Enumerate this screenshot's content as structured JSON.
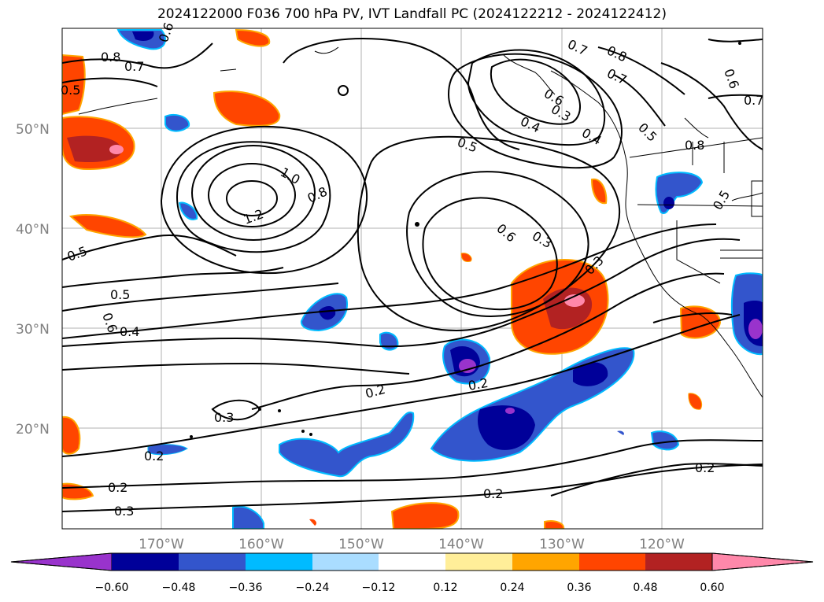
{
  "title": "2024122000 F036 700 hPa PV, IVT Landfall PC (2024122212 - 2024122412)",
  "lat_labels": [
    "50°N",
    "40°N",
    "30°N",
    "20°N"
  ],
  "lon_labels": [
    "170°W",
    "160°W",
    "150°W",
    "140°W",
    "130°W",
    "120°W"
  ],
  "colorbar": {
    "colors": [
      "#9933cc",
      "#000099",
      "#3355cc",
      "#00bbff",
      "#aaddff",
      "#ffffff",
      "#ffee99",
      "#ffa500",
      "#ff4500",
      "#b22222",
      "#ff88aa"
    ],
    "tick_labels": [
      "−0.60",
      "−0.48",
      "−0.36",
      "−0.24",
      "−0.12",
      "0.12",
      "0.24",
      "0.36",
      "0.48",
      "0.60"
    ]
  },
  "contour_labels": [
    "0.8",
    "0.7",
    "0.5",
    "0.6",
    "1.0",
    "0.8",
    "1.2",
    "0.7",
    "0.8",
    "0.7",
    "0.6",
    "0.3",
    "0.4",
    "0.5",
    "0.5",
    "0.6",
    "0.7",
    "0.6",
    "0.5",
    "0.6",
    "0.3",
    "0.3",
    "0.4",
    "0.5",
    "0.4",
    "0.2",
    "0.2",
    "0.3",
    "0.2",
    "0.2",
    "0.2",
    "0.2",
    "0.3",
    "0.8",
    "0.5"
  ]
}
